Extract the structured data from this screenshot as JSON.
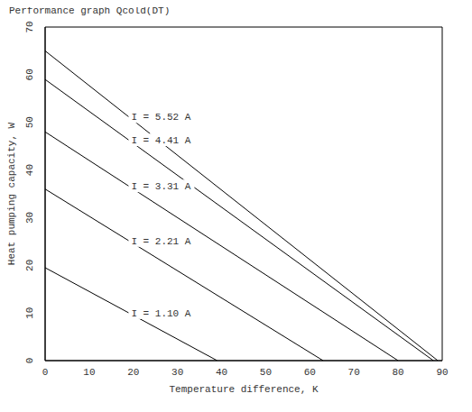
{
  "chart_data": {
    "type": "line",
    "title": "Performance graph Qcold(DT)",
    "x_label": "Temperature difference, K",
    "y_label": "Heat pumping capacity, W",
    "series": [
      {
        "name": "I = 5.52 A",
        "color": "#000000",
        "x": [
          0,
          89
        ],
        "values": [
          65,
          0
        ]
      },
      {
        "name": "I = 4.41 A",
        "color": "#000000",
        "x": [
          0,
          88
        ],
        "values": [
          59,
          0
        ]
      },
      {
        "name": "I = 3.31 A",
        "color": "#000000",
        "x": [
          0,
          80
        ],
        "values": [
          48,
          0
        ]
      },
      {
        "name": "I = 2.21 A",
        "color": "#000000",
        "x": [
          0,
          63
        ],
        "values": [
          36,
          0
        ]
      },
      {
        "name": "I = 1.10 A",
        "color": "#000000",
        "x": [
          0,
          39
        ],
        "values": [
          19.5,
          0
        ]
      }
    ],
    "xlim": [
      0,
      90
    ],
    "ylim": [
      0,
      70
    ],
    "xticks": [
      0,
      10,
      20,
      30,
      40,
      50,
      60,
      70,
      80,
      90
    ],
    "yticks": [
      0,
      10,
      20,
      30,
      40,
      50,
      60,
      70
    ],
    "grid": false
  }
}
